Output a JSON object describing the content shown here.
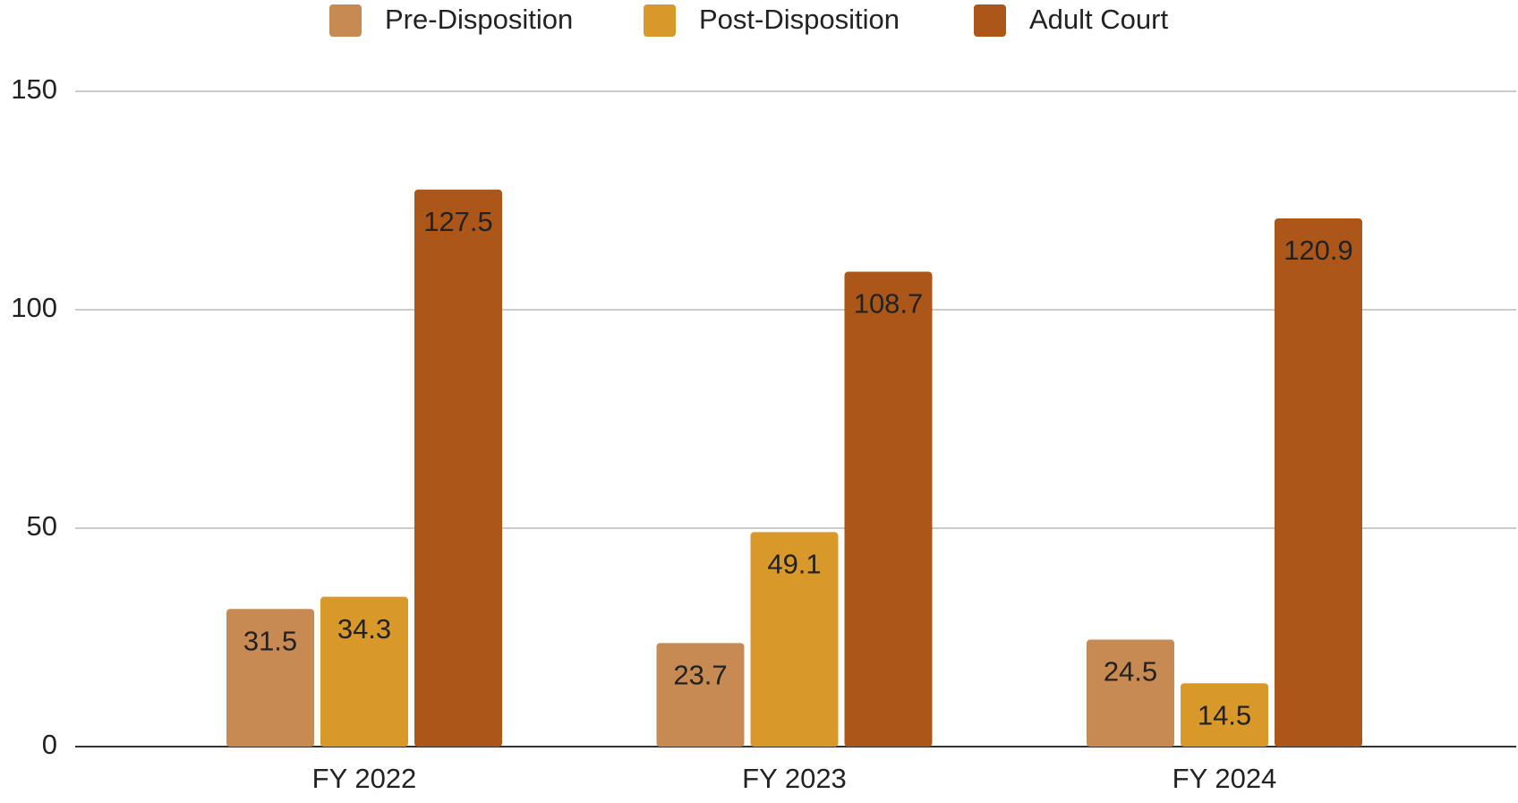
{
  "chart_data": {
    "type": "bar",
    "categories": [
      "FY 2022",
      "FY 2023",
      "FY 2024"
    ],
    "series": [
      {
        "name": "Pre-Disposition",
        "color": "#c68a52",
        "values": [
          31.5,
          23.7,
          24.5
        ]
      },
      {
        "name": "Post-Disposition",
        "color": "#d8992a",
        "values": [
          34.3,
          49.1,
          14.5
        ]
      },
      {
        "name": "Adult Court",
        "color": "#ad561a",
        "values": [
          127.5,
          108.7,
          120.9
        ]
      }
    ],
    "ylim": [
      0,
      150
    ],
    "yticks": [
      0,
      50,
      100,
      150
    ],
    "grid": true,
    "legend": "top"
  }
}
